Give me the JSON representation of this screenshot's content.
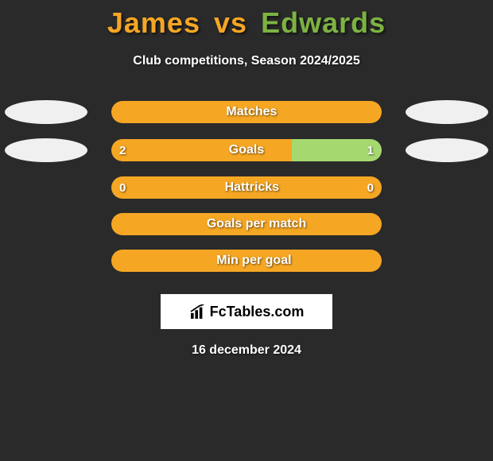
{
  "title": {
    "player1": "James",
    "vs": "vs",
    "player2": "Edwards",
    "player1_color": "#f5a623",
    "player2_color": "#7cb342"
  },
  "subtitle": "Club competitions, Season 2024/2025",
  "ellipse_colors": {
    "left": "#f0f0f0",
    "right": "#f0f0f0"
  },
  "bars": [
    {
      "label": "Matches",
      "left_val": "",
      "right_val": "",
      "left_pct": 50,
      "right_pct": 50,
      "left_color": "#f5a623",
      "right_color": "#f5a623",
      "show_ellipses": true,
      "label_offset": true
    },
    {
      "label": "Goals",
      "left_val": "2",
      "right_val": "1",
      "left_pct": 66.7,
      "right_pct": 33.3,
      "left_color": "#f5a623",
      "right_color": "#a5d96f",
      "show_ellipses": true,
      "label_offset": false
    },
    {
      "label": "Hattricks",
      "left_val": "0",
      "right_val": "0",
      "left_pct": 50,
      "right_pct": 50,
      "left_color": "#f5a623",
      "right_color": "#f5a623",
      "show_ellipses": false,
      "label_offset": true
    },
    {
      "label": "Goals per match",
      "left_val": "",
      "right_val": "",
      "left_pct": 50,
      "right_pct": 50,
      "left_color": "#f5a623",
      "right_color": "#f5a623",
      "show_ellipses": false,
      "label_offset": true
    },
    {
      "label": "Min per goal",
      "left_val": "",
      "right_val": "",
      "left_pct": 50,
      "right_pct": 50,
      "left_color": "#f5a623",
      "right_color": "#f5a623",
      "show_ellipses": false,
      "label_offset": true
    }
  ],
  "logo_text": "FcTables.com",
  "date": "16 december 2024",
  "colors": {
    "background": "#2a2a2a",
    "text": "#ffffff"
  }
}
